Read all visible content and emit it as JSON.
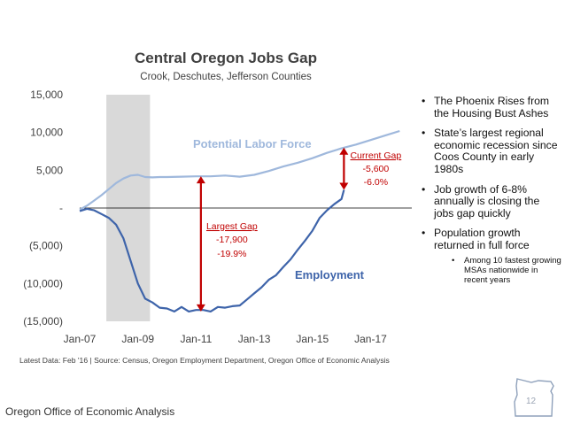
{
  "chart_data": {
    "type": "line",
    "title": "Central Oregon Jobs Gap",
    "subtitle": "Crook, Deschutes, Jefferson Counties",
    "source": "Latest Data: Feb '16  |  Source: Census, Oregon Employment Department, Oregon Office of Economic Analysis",
    "x_tick_labels": [
      "Jan-07",
      "Jan-09",
      "Jan-11",
      "Jan-13",
      "Jan-15",
      "Jan-17"
    ],
    "y_tick_labels": [
      "15,000",
      "10,000",
      "5,000",
      "-",
      "(5,000)",
      "(10,000)",
      "(15,000)"
    ],
    "y_ticks": [
      15000,
      10000,
      5000,
      0,
      -5000,
      -10000,
      -15000
    ],
    "xlim": [
      "2007-01",
      "2018-06"
    ],
    "ylim": [
      -15000,
      15000
    ],
    "recession_shading": [
      "2007-12",
      "2009-06"
    ],
    "series": [
      {
        "name": "Potential Labor Force",
        "color": "#9fb8dc",
        "points": [
          [
            "2007-01",
            -200
          ],
          [
            "2007-04",
            300
          ],
          [
            "2007-07",
            1000
          ],
          [
            "2007-10",
            1700
          ],
          [
            "2008-01",
            2500
          ],
          [
            "2008-04",
            3300
          ],
          [
            "2008-07",
            3900
          ],
          [
            "2008-10",
            4300
          ],
          [
            "2009-01",
            4400
          ],
          [
            "2009-04",
            4100
          ],
          [
            "2009-07",
            4050
          ],
          [
            "2009-10",
            4100
          ],
          [
            "2010-01",
            4100
          ],
          [
            "2010-07",
            4150
          ],
          [
            "2011-01",
            4200
          ],
          [
            "2011-07",
            4200
          ],
          [
            "2012-01",
            4300
          ],
          [
            "2012-07",
            4150
          ],
          [
            "2013-01",
            4400
          ],
          [
            "2013-07",
            4900
          ],
          [
            "2014-01",
            5500
          ],
          [
            "2014-07",
            6000
          ],
          [
            "2015-01",
            6600
          ],
          [
            "2015-07",
            7300
          ],
          [
            "2016-01",
            7900
          ],
          [
            "2016-07",
            8400
          ],
          [
            "2017-01",
            9000
          ],
          [
            "2017-07",
            9600
          ],
          [
            "2018-01",
            10200
          ]
        ]
      },
      {
        "name": "Employment",
        "color": "#3e64aa",
        "points": [
          [
            "2007-01",
            -400
          ],
          [
            "2007-04",
            -100
          ],
          [
            "2007-07",
            -300
          ],
          [
            "2007-10",
            -800
          ],
          [
            "2008-01",
            -1300
          ],
          [
            "2008-04",
            -2200
          ],
          [
            "2008-07",
            -4000
          ],
          [
            "2008-10",
            -7000
          ],
          [
            "2009-01",
            -10000
          ],
          [
            "2009-04",
            -12000
          ],
          [
            "2009-07",
            -12500
          ],
          [
            "2009-10",
            -13200
          ],
          [
            "2010-01",
            -13300
          ],
          [
            "2010-04",
            -13700
          ],
          [
            "2010-07",
            -13100
          ],
          [
            "2010-10",
            -13700
          ],
          [
            "2011-01",
            -13500
          ],
          [
            "2011-04",
            -13500
          ],
          [
            "2011-07",
            -13700
          ],
          [
            "2011-10",
            -13100
          ],
          [
            "2012-01",
            -13200
          ],
          [
            "2012-04",
            -13000
          ],
          [
            "2012-07",
            -12900
          ],
          [
            "2012-10",
            -12100
          ],
          [
            "2013-01",
            -11300
          ],
          [
            "2013-04",
            -10500
          ],
          [
            "2013-07",
            -9500
          ],
          [
            "2013-10",
            -8900
          ],
          [
            "2014-01",
            -7800
          ],
          [
            "2014-04",
            -6800
          ],
          [
            "2014-07",
            -5500
          ],
          [
            "2014-10",
            -4300
          ],
          [
            "2015-01",
            -3000
          ],
          [
            "2015-04",
            -1300
          ],
          [
            "2015-07",
            -300
          ],
          [
            "2015-10",
            500
          ],
          [
            "2016-01",
            1200
          ],
          [
            "2016-02",
            2400
          ]
        ]
      }
    ],
    "annotations": {
      "largest_gap": {
        "label": "Largest Gap",
        "value": "-17,900",
        "pct": "-19.9%",
        "date": "2011-03",
        "from": 4200,
        "to": -13700
      },
      "current_gap": {
        "label": "Current Gap",
        "value": "-5,600",
        "pct": "-6.0%",
        "date": "2016-02",
        "from": 8000,
        "to": 2400
      }
    },
    "colors": {
      "annotation": "#c00000",
      "recession": "#d9d9d9",
      "axis_text": "#404040"
    }
  },
  "bullets": [
    "The Phoenix Rises from the Housing Bust Ashes",
    "State’s largest regional economic recession since Coos County in early 1980s",
    "Job growth of 6-8% annually is closing the jobs gap quickly",
    "Population growth returned in full force"
  ],
  "sub_bullets": [
    "Among 10 fastest growing MSAs nationwide in recent years"
  ],
  "footer": "Oregon Office of Economic Analysis",
  "page_number": "12",
  "logo_icon": "oregon-state-outline-icon"
}
